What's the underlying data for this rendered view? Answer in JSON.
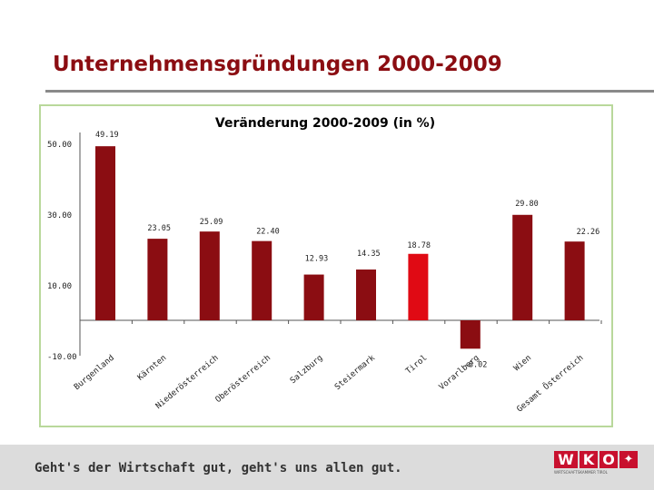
{
  "page": {
    "title": "Unternehmensgründungen 2000-2009"
  },
  "footer": {
    "slogan": "Geht's der Wirtschaft gut, geht's uns allen gut."
  },
  "logo": {
    "letters": [
      "W",
      "K",
      "O"
    ],
    "caption": "WIRTSCHAFTSKAMMER TIROL",
    "colors": {
      "box": "#c8102e",
      "text": "#ffffff"
    }
  },
  "colors": {
    "title": "#8b0d12",
    "bar": "#8b0d12",
    "highlight_bar": "#e00a14",
    "frame": "#b9d89b",
    "rule": "#8a8a8a",
    "footer": "#dcdcdc"
  },
  "chart_data": {
    "type": "bar",
    "title": "Veränderung 2000-2009 (in %)",
    "categories": [
      "Burgenland",
      "Kärnten",
      "Niederösterreich",
      "Oberösterreich",
      "Salzburg",
      "Steiermark",
      "Tirol",
      "Vorarlberg",
      "Wien",
      "Gesamt Österreich"
    ],
    "values": [
      49.19,
      23.05,
      25.09,
      22.4,
      12.93,
      14.35,
      18.78,
      -8.02,
      29.8,
      22.26
    ],
    "value_labels": [
      "49.19",
      "23.05",
      "25.09",
      "22.40",
      "12.93",
      "14.35",
      "18.78",
      "-8.02",
      "29.80",
      "22.26"
    ],
    "highlight_index": 6,
    "y_tick_labels": [
      "50.00",
      "30.00",
      "10.00",
      "-10.00"
    ],
    "y_ticks": [
      50,
      30,
      10,
      -10
    ],
    "ylim": [
      -10,
      50
    ],
    "xlabel": "",
    "ylabel": "",
    "grid": false
  }
}
